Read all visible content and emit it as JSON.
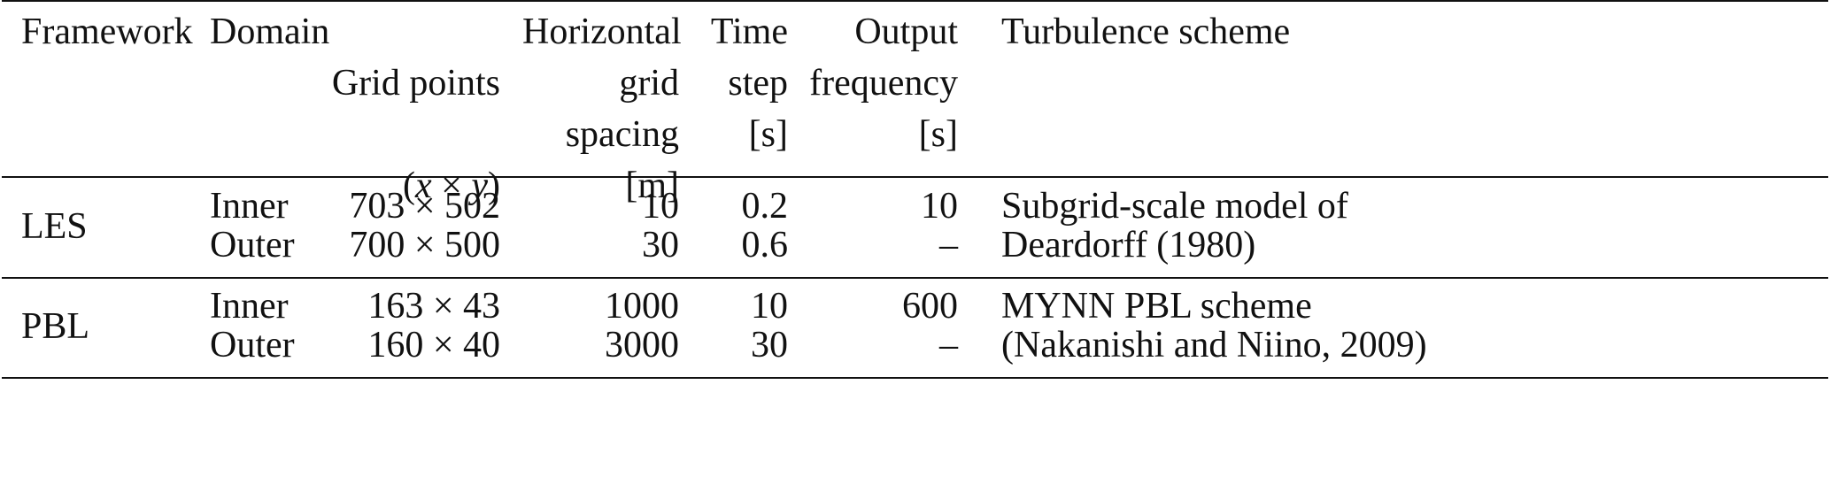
{
  "table": {
    "headers": {
      "framework": "Framework",
      "domain": "Domain",
      "grid_points_line1": "Grid points",
      "grid_points_line2_open": "(",
      "grid_points_line2_x": "x",
      "grid_points_line2_times": " × ",
      "grid_points_line2_y": "y",
      "grid_points_line2_close": ")",
      "horizontal_spacing": "Horizontal\ngrid\nspacing\n[m]",
      "time_step": "Time\nstep\n[s]",
      "output_frequency": "Output\nfrequency\n[s]",
      "turbulence_scheme": "Turbulence scheme"
    },
    "groups": [
      {
        "framework": "LES",
        "rows": [
          {
            "domain": "Inner",
            "grid_points": "703 × 502",
            "spacing": "10",
            "time_step": "0.2",
            "output_frequency": "10"
          },
          {
            "domain": "Outer",
            "grid_points": "700 × 500",
            "spacing": "30",
            "time_step": "0.6",
            "output_frequency": "–"
          }
        ],
        "scheme_line1": "Subgrid-scale model of",
        "scheme_line2": "Deardorff (1980)"
      },
      {
        "framework": "PBL",
        "rows": [
          {
            "domain": "Inner",
            "grid_points": "163 × 43",
            "spacing": "1000",
            "time_step": "10",
            "output_frequency": "600"
          },
          {
            "domain": "Outer",
            "grid_points": "160 × 40",
            "spacing": "3000",
            "time_step": "30",
            "output_frequency": "–"
          }
        ],
        "scheme_line1": "MYNN PBL scheme",
        "scheme_line2": "(Nakanishi and Niino, 2009)"
      }
    ]
  }
}
